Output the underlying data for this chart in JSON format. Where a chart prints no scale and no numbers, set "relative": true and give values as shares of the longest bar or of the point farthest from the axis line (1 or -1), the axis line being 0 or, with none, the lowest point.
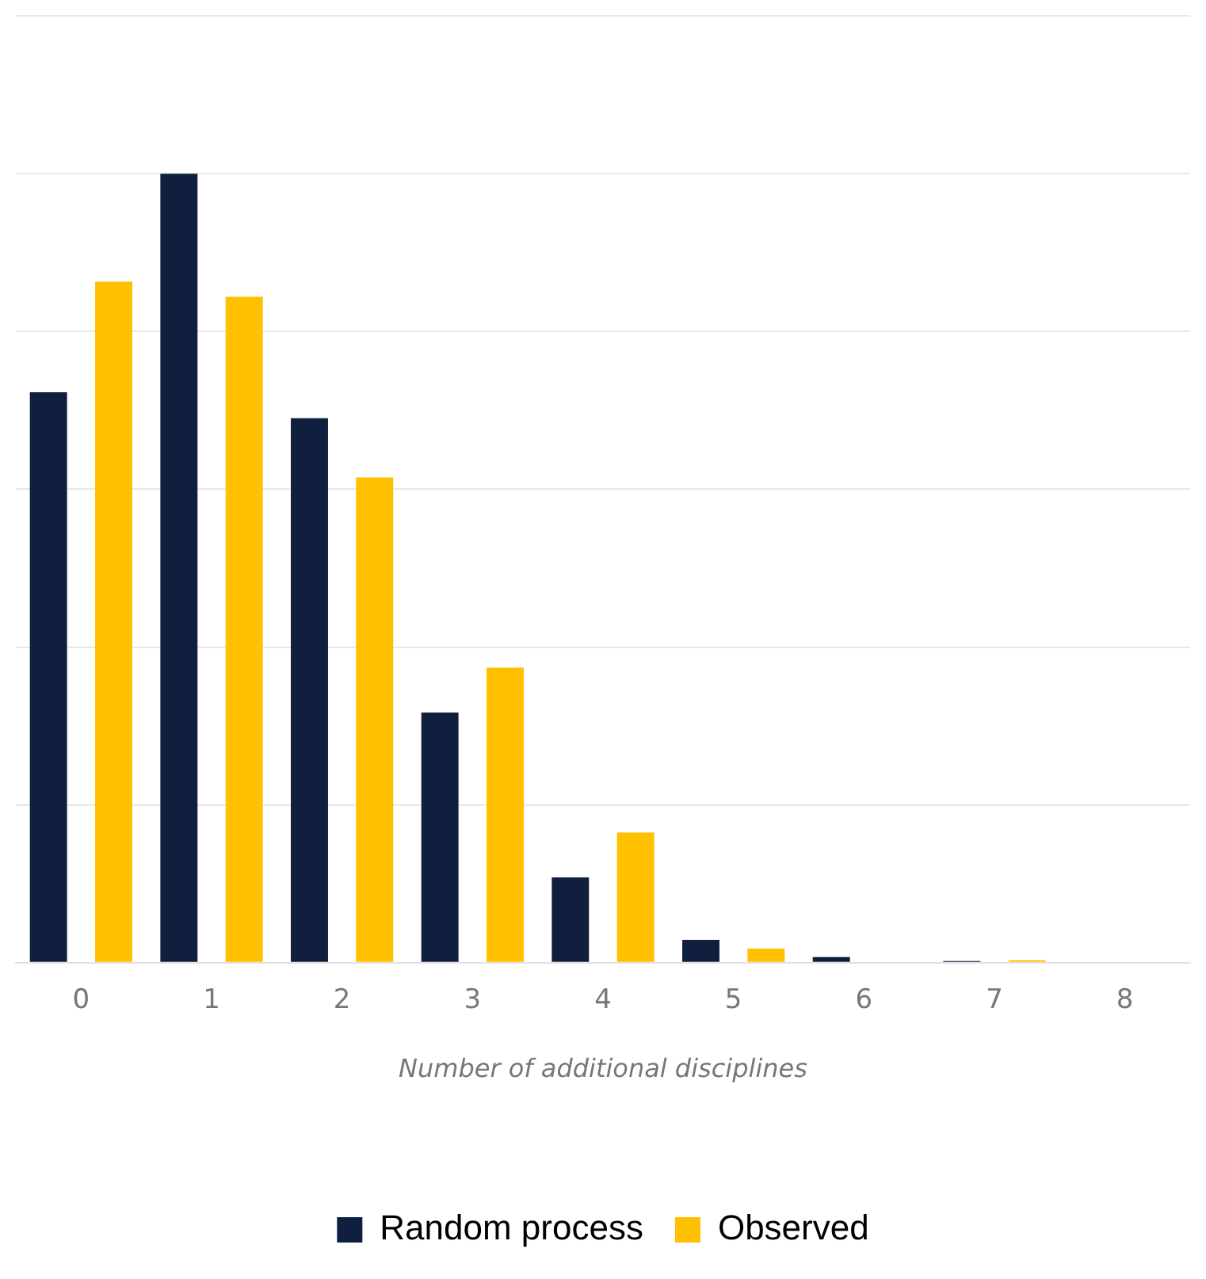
{
  "chart_data": {
    "type": "bar",
    "relative": true,
    "xlabel": "Number of additional disciplines",
    "categories": [
      "0",
      "1",
      "2",
      "3",
      "4",
      "5",
      "6",
      "7",
      "8"
    ],
    "series": [
      {
        "name": "Random process",
        "color": "#0f1f3d",
        "values": [
          0.723,
          1,
          0.69,
          0.317,
          0.108,
          0.029,
          0.007,
          0.002,
          0.001
        ]
      },
      {
        "name": "Observed",
        "color": "#ffc000",
        "values": [
          0.863,
          0.844,
          0.615,
          0.374,
          0.165,
          0.018,
          0,
          0.003,
          0
        ]
      }
    ],
    "grid": "y",
    "legend": "bottom"
  }
}
